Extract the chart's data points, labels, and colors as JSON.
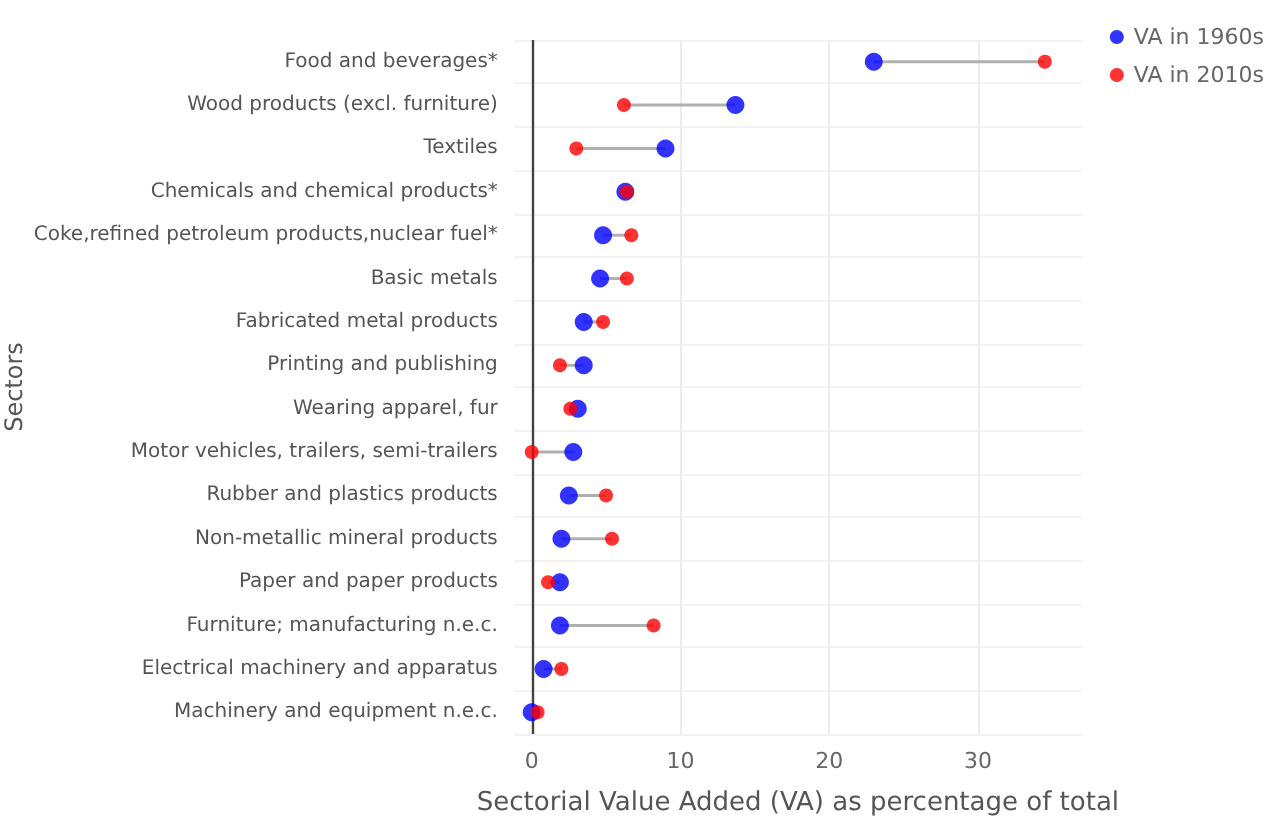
{
  "chart_data": {
    "type": "scatter",
    "orientation": "horizontal",
    "xlabel": "Sectorial Value Added (VA) as percentage of total",
    "ylabel": "Sectors",
    "categories": [
      "Food and beverages*",
      "Wood products (excl. furniture)",
      "Textiles",
      "Chemicals and chemical products*",
      "Coke,refined petroleum products,nuclear fuel*",
      "Basic metals",
      "Fabricated metal products",
      "Printing and publishing",
      "Wearing apparel, fur",
      "Motor vehicles, trailers, semi-trailers",
      "Rubber and plastics products",
      "Non-metallic mineral products",
      "Paper and paper products",
      "Furniture; manufacturing n.e.c.",
      "Electrical machinery and apparatus",
      "Machinery and equipment n.e.c."
    ],
    "series": [
      {
        "name": "VA in 1960s",
        "color": "#0000ff",
        "values": [
          23.0,
          13.7,
          9.0,
          6.3,
          4.8,
          4.6,
          3.5,
          3.5,
          3.1,
          2.8,
          2.5,
          2.0,
          1.9,
          1.9,
          0.8,
          0.0
        ]
      },
      {
        "name": "VA in 2010s",
        "color": "#ff0000",
        "values": [
          34.5,
          6.2,
          3.0,
          6.4,
          6.7,
          6.4,
          4.8,
          1.9,
          2.6,
          0.0,
          5.0,
          5.4,
          1.1,
          8.2,
          2.0,
          0.4
        ]
      }
    ],
    "xlim": [
      -1.2,
      37
    ],
    "xticks": [
      0,
      10,
      20,
      30
    ],
    "grid": true,
    "legend": "top right",
    "marker": "circle"
  }
}
